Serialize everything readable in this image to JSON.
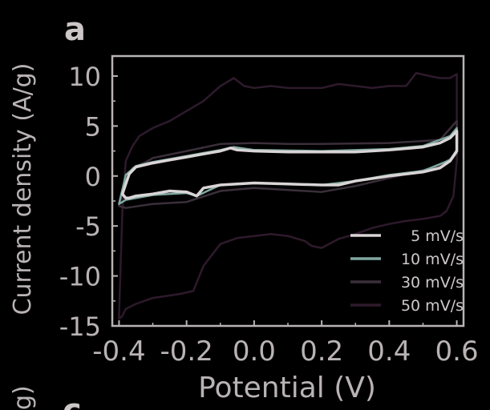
{
  "chart_data": {
    "type": "line",
    "xlabel": "Potential (V)",
    "ylabel": "Current density (A/g)",
    "xlim": [
      -0.42,
      0.62
    ],
    "ylim": [
      -15,
      12
    ],
    "x_ticks": [
      "-0.4",
      "-0.2",
      "0.0",
      "0.2",
      "0.4",
      "0.6"
    ],
    "x_tick_values": [
      -0.4,
      -0.2,
      0.0,
      0.2,
      0.4,
      0.6
    ],
    "y_ticks": [
      "10",
      "5",
      "0",
      "-5",
      "-10",
      "-15"
    ],
    "y_tick_values": [
      10,
      5,
      0,
      -5,
      -10,
      -15
    ],
    "legend_position": "bottom-right",
    "panel_labels": [
      "a",
      "c"
    ],
    "cropped_label": "g)",
    "series": [
      {
        "name": "5 mV/s",
        "color": "#d9d4d5",
        "x": [
          -0.39,
          -0.37,
          -0.35,
          -0.3,
          -0.25,
          -0.2,
          -0.15,
          -0.1,
          -0.07,
          -0.05,
          0.0,
          0.1,
          0.2,
          0.3,
          0.4,
          0.5,
          0.55,
          0.58,
          0.6,
          0.6,
          0.58,
          0.55,
          0.5,
          0.4,
          0.3,
          0.25,
          0.2,
          0.1,
          0.0,
          -0.1,
          -0.15,
          -0.17,
          -0.2,
          -0.25,
          -0.3,
          -0.35,
          -0.37,
          -0.38
        ],
        "y": [
          -1.8,
          0.2,
          0.9,
          1.3,
          1.6,
          1.9,
          2.2,
          2.5,
          2.8,
          2.6,
          2.5,
          2.4,
          2.4,
          2.4,
          2.6,
          2.9,
          3.3,
          3.8,
          4.5,
          2.5,
          1.5,
          0.8,
          0.4,
          0.0,
          -0.5,
          -0.9,
          -0.9,
          -0.8,
          -0.7,
          -0.9,
          -1.2,
          -2.0,
          -1.6,
          -1.5,
          -1.8,
          -2.0,
          -2.2,
          -2.2
        ]
      },
      {
        "name": "10 mV/s",
        "color": "#7fa8a0",
        "x": [
          -0.4,
          -0.38,
          -0.35,
          -0.3,
          -0.2,
          -0.1,
          -0.06,
          0.0,
          0.2,
          0.4,
          0.5,
          0.58,
          0.6,
          0.6,
          0.58,
          0.5,
          0.4,
          0.3,
          0.2,
          0.1,
          0.0,
          -0.1,
          -0.17,
          -0.2,
          -0.3,
          -0.38
        ],
        "y": [
          -2.8,
          0.1,
          1.0,
          1.4,
          2.0,
          2.6,
          2.9,
          2.6,
          2.5,
          2.7,
          3.0,
          4.0,
          4.8,
          2.6,
          1.6,
          0.5,
          0.1,
          -0.5,
          -0.9,
          -0.8,
          -0.7,
          -0.9,
          -2.0,
          -1.7,
          -1.9,
          -2.4
        ]
      },
      {
        "name": "30 mV/s",
        "color": "#3a2f3a",
        "x": [
          -0.4,
          -0.38,
          -0.36,
          -0.32,
          -0.3,
          -0.2,
          -0.1,
          0.0,
          0.1,
          0.2,
          0.4,
          0.55,
          0.6,
          0.6,
          0.55,
          0.4,
          0.3,
          0.2,
          0.1,
          0.0,
          -0.1,
          -0.2,
          -0.3,
          -0.38
        ],
        "y": [
          -3.0,
          -0.5,
          0.8,
          1.4,
          1.8,
          2.5,
          3.2,
          3.3,
          3.2,
          3.2,
          3.3,
          3.6,
          5.5,
          2.2,
          1.0,
          -0.2,
          -1.0,
          -1.6,
          -1.4,
          -1.2,
          -1.5,
          -2.6,
          -2.8,
          -3.2
        ]
      },
      {
        "name": "50 mV/s",
        "color": "#2e1a2c",
        "x": [
          -0.4,
          -0.39,
          -0.38,
          -0.36,
          -0.34,
          -0.3,
          -0.25,
          -0.2,
          -0.15,
          -0.1,
          -0.06,
          -0.03,
          0.0,
          0.05,
          0.1,
          0.15,
          0.2,
          0.25,
          0.3,
          0.35,
          0.4,
          0.45,
          0.48,
          0.52,
          0.55,
          0.58,
          0.6,
          0.6,
          0.59,
          0.57,
          0.55,
          0.5,
          0.45,
          0.4,
          0.35,
          0.3,
          0.25,
          0.2,
          0.17,
          0.15,
          0.1,
          0.05,
          0.0,
          -0.05,
          -0.1,
          -0.15,
          -0.18,
          -0.22,
          -0.26,
          -0.3,
          -0.35,
          -0.38,
          -0.39,
          -0.4
        ],
        "y": [
          -14.0,
          -3.5,
          1.5,
          3.0,
          4.0,
          4.8,
          5.5,
          6.5,
          7.5,
          9.0,
          9.8,
          9.0,
          8.8,
          9.0,
          8.8,
          8.8,
          8.8,
          9.2,
          9.0,
          8.8,
          9.0,
          9.0,
          10.3,
          10.0,
          9.8,
          9.8,
          10.2,
          1.5,
          -2.0,
          -3.5,
          -4.0,
          -4.3,
          -4.5,
          -4.8,
          -5.2,
          -5.8,
          -6.3,
          -7.2,
          -7.0,
          -6.5,
          -6.0,
          -5.8,
          -6.0,
          -6.2,
          -6.8,
          -9.0,
          -11.5,
          -11.8,
          -12.0,
          -12.2,
          -12.8,
          -13.3,
          -14.0,
          -14.3
        ]
      }
    ]
  }
}
